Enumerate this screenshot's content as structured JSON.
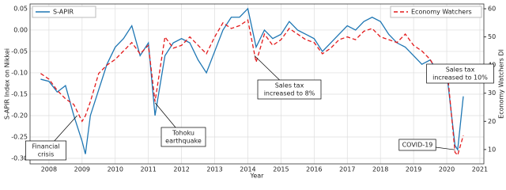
{
  "chart_data": {
    "type": "line",
    "xlabel": "Year",
    "ylabel": "S-APIR Index on Nikkei",
    "y2label": "Economy Watchers DI",
    "x": [
      2007.75,
      2008.0,
      2008.25,
      2008.5,
      2008.75,
      2009.0,
      2009.1,
      2009.25,
      2009.5,
      2009.75,
      2010.0,
      2010.25,
      2010.5,
      2010.75,
      2011.0,
      2011.2,
      2011.5,
      2011.75,
      2012.0,
      2012.25,
      2012.5,
      2012.75,
      2013.0,
      2013.25,
      2013.5,
      2013.75,
      2014.0,
      2014.25,
      2014.5,
      2014.75,
      2015.0,
      2015.25,
      2015.5,
      2015.75,
      2016.0,
      2016.25,
      2016.5,
      2016.75,
      2017.0,
      2017.25,
      2017.5,
      2017.75,
      2018.0,
      2018.25,
      2018.5,
      2018.75,
      2019.0,
      2019.25,
      2019.5,
      2019.75,
      2020.0,
      2020.25,
      2020.33,
      2020.5
    ],
    "series": [
      {
        "name": "S-APIR",
        "color": "#1f77b4",
        "dash": "none",
        "values": [
          -0.115,
          -0.12,
          -0.145,
          -0.13,
          -0.2,
          -0.26,
          -0.29,
          -0.2,
          -0.14,
          -0.08,
          -0.04,
          -0.02,
          0.01,
          -0.06,
          -0.03,
          -0.2,
          -0.06,
          -0.03,
          -0.02,
          -0.03,
          -0.07,
          -0.1,
          -0.05,
          0.0,
          0.03,
          0.03,
          0.05,
          -0.04,
          0.0,
          -0.02,
          -0.01,
          0.02,
          0.0,
          -0.01,
          -0.02,
          -0.05,
          -0.03,
          -0.01,
          0.01,
          0.0,
          0.02,
          0.03,
          0.02,
          -0.01,
          -0.03,
          -0.04,
          -0.06,
          -0.08,
          -0.07,
          -0.1,
          -0.1,
          -0.27,
          -0.28,
          -0.155
        ]
      },
      {
        "name": "Economy Watchers",
        "color": "#e31a1c",
        "dash": "5,3",
        "axis": "y2",
        "values": [
          37,
          35,
          31,
          28,
          26,
          20,
          22,
          27,
          37,
          40,
          42,
          45,
          48,
          44,
          47,
          27,
          50,
          46,
          47,
          50,
          47,
          44,
          50,
          55,
          53,
          54,
          56,
          41,
          51,
          47,
          49,
          53,
          51,
          49,
          48,
          44,
          46,
          49,
          50,
          49,
          52,
          53,
          50,
          49,
          48,
          51,
          47,
          45,
          42,
          37,
          40,
          9,
          8,
          15
        ]
      }
    ],
    "xlim": [
      2007.43,
      2021.12
    ],
    "xticks": [
      2008,
      2009,
      2010,
      2011,
      2012,
      2013,
      2014,
      2015,
      2016,
      2017,
      2018,
      2019,
      2020,
      2021
    ],
    "ylim": [
      -0.313,
      0.061
    ],
    "yticks": [
      {
        "value": -0.3,
        "label": "-0.30"
      },
      -0.25,
      {
        "value": -0.2,
        "label": "-0.20"
      },
      -0.15,
      {
        "value": -0.1,
        "label": "-0.10"
      },
      -0.05,
      {
        "value": 0,
        "label": "0.00"
      },
      0.05
    ],
    "y2lim": [
      4.9,
      61.7
    ],
    "y2ticks": [
      10,
      20,
      30,
      40,
      50,
      60
    ],
    "annotations": [
      {
        "lines": [
          "Financial",
          "crisis"
        ]
      },
      {
        "lines": [
          "Tohoku",
          "earthquake"
        ]
      },
      {
        "lines": [
          "Sales tax",
          "increased to 8%"
        ]
      },
      {
        "lines": [
          "Sales tax",
          "increased to 10%"
        ]
      },
      {
        "lines": [
          "COVID-19"
        ]
      }
    ]
  }
}
